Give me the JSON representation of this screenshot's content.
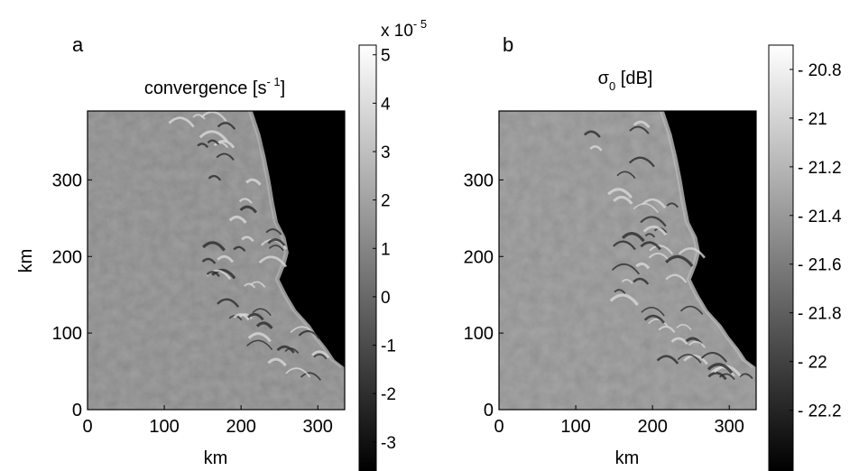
{
  "chart_data": [
    {
      "type": "heatmap",
      "panel_label": "a",
      "title": "convergence [s",
      "title_sup": "- 1",
      "title_close": "]",
      "xlabel": "km",
      "ylabel": "km",
      "xlim": [
        0,
        335
      ],
      "ylim": [
        0,
        390
      ],
      "xticks": [
        0,
        100,
        200,
        300
      ],
      "yticks": [
        0,
        100,
        200,
        300
      ],
      "colorbar": {
        "multiplier": "x 10",
        "multiplier_exp": "- 5",
        "range": [
          -3.6,
          5.2
        ],
        "ticks": [
          "5",
          "4",
          "3",
          "2",
          "1",
          "0",
          "-1",
          "-2",
          "-3"
        ],
        "tick_values": [
          5,
          4,
          3,
          2,
          1,
          0,
          -1,
          -2,
          -3
        ],
        "colormap": "gray"
      },
      "background_color": "#808080",
      "masked_color": "#000000",
      "coast_boundary_km": [
        [
          215,
          390
        ],
        [
          225,
          360
        ],
        [
          232,
          330
        ],
        [
          238,
          300
        ],
        [
          243,
          270
        ],
        [
          248,
          245
        ],
        [
          258,
          225
        ],
        [
          262,
          205
        ],
        [
          258,
          190
        ],
        [
          250,
          170
        ],
        [
          260,
          150
        ],
        [
          272,
          130
        ],
        [
          290,
          110
        ],
        [
          300,
          95
        ],
        [
          312,
          80
        ],
        [
          322,
          65
        ],
        [
          335,
          55
        ]
      ]
    },
    {
      "type": "heatmap",
      "panel_label": "b",
      "title": "σ",
      "title_sub": "0",
      "title_close": " [dB]",
      "xlabel": "km",
      "ylabel": "",
      "xlim": [
        0,
        335
      ],
      "ylim": [
        0,
        390
      ],
      "xticks": [
        0,
        100,
        200,
        300
      ],
      "yticks": [
        0,
        100,
        200,
        300
      ],
      "colorbar": {
        "range": [
          -22.45,
          -20.7
        ],
        "ticks": [
          "- 20.8",
          "- 21",
          "- 21.2",
          "- 21.4",
          "- 21.6",
          "- 21.8",
          "- 22",
          "- 22.2"
        ],
        "tick_values": [
          -20.8,
          -21,
          -21.2,
          -21.4,
          -21.6,
          -21.8,
          -22,
          -22.2
        ],
        "colormap": "gray"
      },
      "background_color": "#8a8a8a",
      "masked_color": "#000000",
      "coast_boundary_km": [
        [
          215,
          390
        ],
        [
          225,
          360
        ],
        [
          232,
          330
        ],
        [
          238,
          300
        ],
        [
          243,
          270
        ],
        [
          248,
          245
        ],
        [
          258,
          225
        ],
        [
          262,
          205
        ],
        [
          258,
          190
        ],
        [
          250,
          170
        ],
        [
          260,
          150
        ],
        [
          272,
          130
        ],
        [
          290,
          110
        ],
        [
          300,
          95
        ],
        [
          312,
          80
        ],
        [
          322,
          65
        ],
        [
          335,
          55
        ]
      ]
    }
  ]
}
